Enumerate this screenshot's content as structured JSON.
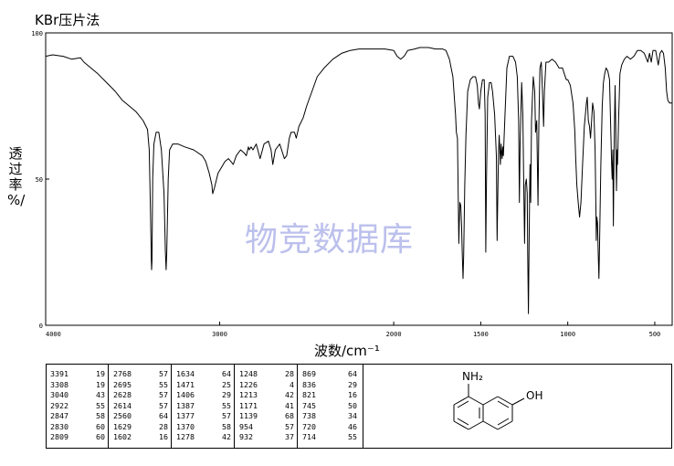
{
  "title": "KBr压片法",
  "watermark": "物竞数据库",
  "chart_data": {
    "type": "line",
    "xlabel": "波数/cm⁻¹",
    "ylabel": [
      "透",
      "过",
      "率",
      "%/"
    ],
    "xlim": [
      4000,
      400
    ],
    "ylim": [
      0,
      100
    ],
    "x_ticks": [
      4000,
      3000,
      2000,
      1500,
      1000,
      500
    ],
    "y_ticks": [
      0,
      50,
      100
    ],
    "x_tick_labels": [
      "4000",
      "3000",
      "2000",
      "1500",
      "1000",
      "500"
    ],
    "y_tick_labels": [
      "0",
      "50",
      "100"
    ],
    "grid": false,
    "series": [
      {
        "color": "#000000",
        "points": [
          [
            4000,
            92
          ],
          [
            3960,
            92.5
          ],
          [
            3900,
            92
          ],
          [
            3850,
            91
          ],
          [
            3800,
            91.5
          ],
          [
            3780,
            90
          ],
          [
            3740,
            88
          ],
          [
            3700,
            86
          ],
          [
            3650,
            83
          ],
          [
            3600,
            80
          ],
          [
            3560,
            77
          ],
          [
            3520,
            75
          ],
          [
            3480,
            73
          ],
          [
            3440,
            70
          ],
          [
            3415,
            67
          ],
          [
            3405,
            60
          ],
          [
            3398,
            40
          ],
          [
            3393,
            22
          ],
          [
            3391,
            19
          ],
          [
            3389,
            22
          ],
          [
            3385,
            50
          ],
          [
            3378,
            62
          ],
          [
            3365,
            66
          ],
          [
            3350,
            66
          ],
          [
            3335,
            60
          ],
          [
            3320,
            45
          ],
          [
            3312,
            25
          ],
          [
            3308,
            19
          ],
          [
            3304,
            25
          ],
          [
            3296,
            50
          ],
          [
            3288,
            60
          ],
          [
            3270,
            62
          ],
          [
            3240,
            62
          ],
          [
            3200,
            61
          ],
          [
            3150,
            60
          ],
          [
            3100,
            58
          ],
          [
            3080,
            56
          ],
          [
            3060,
            52
          ],
          [
            3045,
            48
          ],
          [
            3040,
            45
          ],
          [
            3030,
            47
          ],
          [
            3010,
            52
          ],
          [
            2990,
            54
          ],
          [
            2970,
            56
          ],
          [
            2950,
            57
          ],
          [
            2935,
            56
          ],
          [
            2922,
            55
          ],
          [
            2905,
            58
          ],
          [
            2880,
            60
          ],
          [
            2860,
            59
          ],
          [
            2847,
            58
          ],
          [
            2835,
            61
          ],
          [
            2830,
            60
          ],
          [
            2820,
            61
          ],
          [
            2809,
            60
          ],
          [
            2790,
            62
          ],
          [
            2768,
            57
          ],
          [
            2745,
            62
          ],
          [
            2720,
            63
          ],
          [
            2705,
            60
          ],
          [
            2695,
            55
          ],
          [
            2680,
            60
          ],
          [
            2655,
            62
          ],
          [
            2628,
            57
          ],
          [
            2615,
            58
          ],
          [
            2600,
            64
          ],
          [
            2590,
            66
          ],
          [
            2570,
            66
          ],
          [
            2560,
            64
          ],
          [
            2545,
            68
          ],
          [
            2520,
            71
          ],
          [
            2500,
            75
          ],
          [
            2470,
            80
          ],
          [
            2440,
            85
          ],
          [
            2400,
            88
          ],
          [
            2350,
            91
          ],
          [
            2300,
            93
          ],
          [
            2250,
            94
          ],
          [
            2200,
            94.5
          ],
          [
            2150,
            94.5
          ],
          [
            2100,
            94.5
          ],
          [
            2050,
            94.5
          ],
          [
            2000,
            94
          ],
          [
            1980,
            92
          ],
          [
            1960,
            91
          ],
          [
            1940,
            92
          ],
          [
            1920,
            94
          ],
          [
            1880,
            94.5
          ],
          [
            1850,
            95
          ],
          [
            1800,
            95
          ],
          [
            1760,
            94.5
          ],
          [
            1720,
            94.5
          ],
          [
            1700,
            94
          ],
          [
            1680,
            91
          ],
          [
            1660,
            85
          ],
          [
            1645,
            72
          ],
          [
            1640,
            66
          ],
          [
            1634,
            64
          ],
          [
            1628,
            38
          ],
          [
            1626,
            28
          ],
          [
            1623,
            36
          ],
          [
            1620,
            42
          ],
          [
            1615,
            41
          ],
          [
            1610,
            34
          ],
          [
            1606,
            24
          ],
          [
            1602,
            16
          ],
          [
            1598,
            24
          ],
          [
            1592,
            48
          ],
          [
            1585,
            65
          ],
          [
            1575,
            80
          ],
          [
            1560,
            84
          ],
          [
            1545,
            85
          ],
          [
            1530,
            85
          ],
          [
            1520,
            82
          ],
          [
            1513,
            76
          ],
          [
            1508,
            74
          ],
          [
            1500,
            80
          ],
          [
            1490,
            84
          ],
          [
            1480,
            84
          ],
          [
            1475,
            72
          ],
          [
            1471,
            25
          ],
          [
            1467,
            50
          ],
          [
            1460,
            78
          ],
          [
            1450,
            83
          ],
          [
            1440,
            83
          ],
          [
            1432,
            80
          ],
          [
            1420,
            72
          ],
          [
            1410,
            58
          ],
          [
            1406,
            29
          ],
          [
            1402,
            45
          ],
          [
            1398,
            58
          ],
          [
            1394,
            65
          ],
          [
            1387,
            55
          ],
          [
            1383,
            62
          ],
          [
            1377,
            57
          ],
          [
            1373,
            61
          ],
          [
            1370,
            58
          ],
          [
            1362,
            70
          ],
          [
            1350,
            88
          ],
          [
            1335,
            92
          ],
          [
            1315,
            92
          ],
          [
            1300,
            90
          ],
          [
            1290,
            85
          ],
          [
            1282,
            70
          ],
          [
            1278,
            42
          ],
          [
            1274,
            62
          ],
          [
            1265,
            83
          ],
          [
            1258,
            72
          ],
          [
            1252,
            45
          ],
          [
            1248,
            28
          ],
          [
            1244,
            48
          ],
          [
            1238,
            50
          ],
          [
            1233,
            45
          ],
          [
            1230,
            25
          ],
          [
            1226,
            4
          ],
          [
            1222,
            30
          ],
          [
            1217,
            55
          ],
          [
            1213,
            42
          ],
          [
            1208,
            70
          ],
          [
            1198,
            85
          ],
          [
            1190,
            80
          ],
          [
            1185,
            66
          ],
          [
            1178,
            70
          ],
          [
            1171,
            41
          ],
          [
            1166,
            68
          ],
          [
            1160,
            88
          ],
          [
            1152,
            90
          ],
          [
            1145,
            80
          ],
          [
            1139,
            68
          ],
          [
            1134,
            80
          ],
          [
            1125,
            90
          ],
          [
            1110,
            90
          ],
          [
            1090,
            91
          ],
          [
            1070,
            90
          ],
          [
            1050,
            88
          ],
          [
            1030,
            88
          ],
          [
            1020,
            86
          ],
          [
            1008,
            84
          ],
          [
            1000,
            84
          ],
          [
            985,
            82
          ],
          [
            970,
            76
          ],
          [
            960,
            67
          ],
          [
            954,
            57
          ],
          [
            948,
            48
          ],
          [
            940,
            42
          ],
          [
            932,
            37
          ],
          [
            924,
            42
          ],
          [
            915,
            55
          ],
          [
            905,
            68
          ],
          [
            893,
            76
          ],
          [
            888,
            78
          ],
          [
            882,
            70
          ],
          [
            875,
            68
          ],
          [
            869,
            64
          ],
          [
            863,
            70
          ],
          [
            857,
            76
          ],
          [
            850,
            73
          ],
          [
            843,
            60
          ],
          [
            838,
            40
          ],
          [
            836,
            29
          ],
          [
            833,
            37
          ],
          [
            829,
            35
          ],
          [
            825,
            25
          ],
          [
            821,
            16
          ],
          [
            817,
            28
          ],
          [
            810,
            55
          ],
          [
            802,
            75
          ],
          [
            795,
            83
          ],
          [
            788,
            86
          ],
          [
            780,
            88
          ],
          [
            770,
            87
          ],
          [
            760,
            84
          ],
          [
            752,
            65
          ],
          [
            748,
            55
          ],
          [
            745,
            50
          ],
          [
            741,
            60
          ],
          [
            738,
            34
          ],
          [
            734,
            60
          ],
          [
            728,
            82
          ],
          [
            724,
            66
          ],
          [
            720,
            46
          ],
          [
            716,
            60
          ],
          [
            714,
            55
          ],
          [
            708,
            70
          ],
          [
            700,
            86
          ],
          [
            690,
            89
          ],
          [
            675,
            91
          ],
          [
            660,
            92
          ],
          [
            640,
            91
          ],
          [
            620,
            92
          ],
          [
            600,
            94
          ],
          [
            580,
            94
          ],
          [
            560,
            93
          ],
          [
            540,
            90
          ],
          [
            530,
            93
          ],
          [
            520,
            90
          ],
          [
            510,
            94
          ],
          [
            495,
            94
          ],
          [
            480,
            89
          ],
          [
            470,
            93
          ],
          [
            460,
            94
          ],
          [
            450,
            93
          ],
          [
            440,
            88
          ],
          [
            432,
            80
          ],
          [
            425,
            77
          ],
          [
            415,
            76
          ],
          [
            400,
            76
          ]
        ]
      }
    ]
  },
  "peaks": [
    [
      [
        "3391",
        "19"
      ],
      [
        "3308",
        "19"
      ],
      [
        "3040",
        "43"
      ],
      [
        "2922",
        "55"
      ],
      [
        "2847",
        "58"
      ],
      [
        "2830",
        "60"
      ],
      [
        "2809",
        "60"
      ]
    ],
    [
      [
        "2768",
        "57"
      ],
      [
        "2695",
        "55"
      ],
      [
        "2628",
        "57"
      ],
      [
        "2614",
        "57"
      ],
      [
        "2560",
        "64"
      ],
      [
        "1629",
        "28"
      ],
      [
        "1602",
        "16"
      ]
    ],
    [
      [
        "1634",
        "64"
      ],
      [
        "1471",
        "25"
      ],
      [
        "1406",
        "29"
      ],
      [
        "1387",
        "55"
      ],
      [
        "1377",
        "57"
      ],
      [
        "1370",
        "58"
      ],
      [
        "1278",
        "42"
      ]
    ],
    [
      [
        "1248",
        "28"
      ],
      [
        "1226",
        "4"
      ],
      [
        "1213",
        "42"
      ],
      [
        "1171",
        "41"
      ],
      [
        "1139",
        "68"
      ],
      [
        "954",
        "57"
      ],
      [
        "932",
        "37"
      ]
    ],
    [
      [
        "869",
        "64"
      ],
      [
        "836",
        "29"
      ],
      [
        "821",
        "16"
      ],
      [
        "745",
        "50"
      ],
      [
        "738",
        "34"
      ],
      [
        "720",
        "46"
      ],
      [
        "714",
        "55"
      ]
    ]
  ],
  "structure": {
    "nh2_label": "NH₂",
    "oh_label": "OH"
  }
}
